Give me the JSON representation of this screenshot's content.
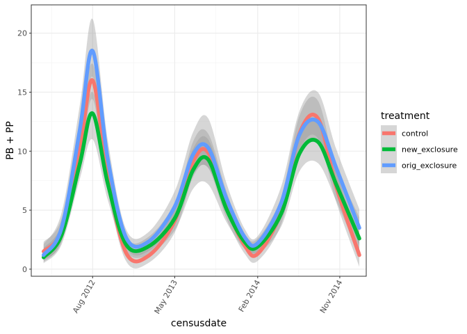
{
  "chart_data": {
    "type": "line",
    "style": "smoothed lines with grey confidence ribbons",
    "xlabel": "censusdate",
    "ylabel": "PB + PP",
    "xlim": [
      "2012-01-10",
      "2015-01-28"
    ],
    "ylim": [
      -0.6,
      22.4
    ],
    "x_ticks": [
      {
        "date": "2012-08-01",
        "label": "Aug 2012"
      },
      {
        "date": "2013-05-01",
        "label": "May 2013"
      },
      {
        "date": "2014-02-01",
        "label": "Feb 2014"
      },
      {
        "date": "2014-11-01",
        "label": "Nov 2014"
      }
    ],
    "y_ticks": [
      0,
      5,
      10,
      15,
      20
    ],
    "grid": true,
    "legend": {
      "title": "treatment",
      "position": "right"
    },
    "x": [
      "2012-02-20",
      "2012-04-20",
      "2012-06-20",
      "2012-08-01",
      "2012-09-20",
      "2012-11-20",
      "2013-02-01",
      "2013-05-01",
      "2013-07-01",
      "2013-08-20",
      "2013-10-20",
      "2013-12-20",
      "2014-02-01",
      "2014-04-20",
      "2014-06-20",
      "2014-08-20",
      "2014-10-20",
      "2015-01-05"
    ],
    "series": [
      {
        "name": "control",
        "color": "#F8766D",
        "values": [
          1.5,
          3.3,
          10.3,
          16.0,
          7.9,
          1.4,
          1.1,
          4.1,
          9.1,
          9.9,
          5.3,
          2.0,
          1.3,
          4.9,
          11.5,
          12.8,
          7.0,
          1.2
        ],
        "lower": [
          0.8,
          2.3,
          8.9,
          14.4,
          6.7,
          0.7,
          0.5,
          3.1,
          7.8,
          8.6,
          4.3,
          1.3,
          0.7,
          3.8,
          10.0,
          11.1,
          5.7,
          0.2
        ],
        "upper": [
          2.3,
          4.3,
          11.8,
          17.4,
          9.3,
          2.1,
          1.8,
          5.2,
          10.8,
          11.5,
          6.6,
          2.6,
          1.9,
          6.1,
          13.0,
          14.3,
          8.3,
          2.6
        ]
      },
      {
        "name": "new_exclosure",
        "color": "#00BA38",
        "values": [
          1.0,
          2.9,
          9.0,
          13.2,
          7.3,
          2.1,
          1.9,
          4.3,
          8.4,
          9.3,
          5.1,
          2.3,
          1.9,
          4.7,
          9.8,
          10.8,
          7.2,
          2.6
        ],
        "lower": [
          0.5,
          2.1,
          7.7,
          11.0,
          5.9,
          1.5,
          1.2,
          3.3,
          6.8,
          7.2,
          4.0,
          1.7,
          1.3,
          3.6,
          8.3,
          9.0,
          5.8,
          1.2
        ],
        "upper": [
          1.8,
          3.8,
          10.6,
          15.0,
          9.0,
          2.8,
          2.7,
          5.6,
          10.2,
          11.0,
          6.4,
          3.0,
          2.6,
          6.0,
          11.6,
          12.5,
          8.6,
          4.4
        ]
      },
      {
        "name": "orig_exclosure",
        "color": "#619CFF",
        "values": [
          1.2,
          3.5,
          11.9,
          18.5,
          9.4,
          2.7,
          2.3,
          5.3,
          9.7,
          10.3,
          6.0,
          2.7,
          2.2,
          5.6,
          11.4,
          12.5,
          8.6,
          3.5
        ],
        "lower": [
          0.6,
          2.5,
          10.0,
          16.3,
          7.9,
          1.9,
          1.5,
          4.1,
          8.0,
          8.6,
          4.8,
          2.0,
          1.5,
          4.3,
          9.7,
          10.6,
          7.0,
          2.0
        ],
        "upper": [
          2.1,
          4.8,
          14.0,
          21.2,
          11.0,
          3.4,
          3.1,
          6.6,
          11.6,
          12.8,
          7.3,
          3.4,
          2.8,
          7.0,
          13.4,
          15.0,
          10.2,
          5.1
        ]
      }
    ]
  }
}
